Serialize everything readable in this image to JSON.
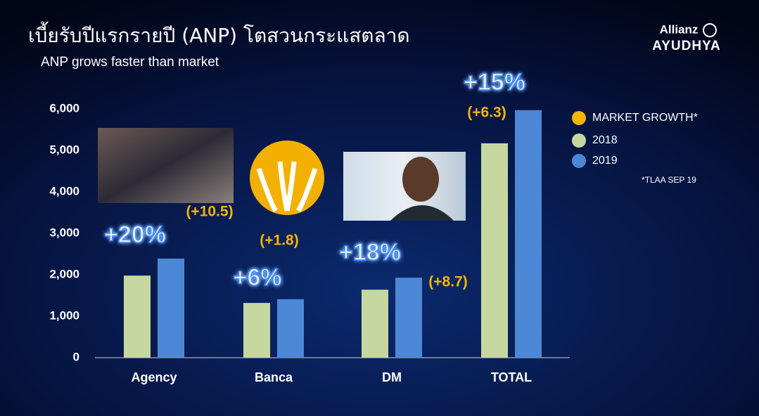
{
  "chart_data": {
    "type": "bar",
    "title": "เบี้ยรับปีแรกรายปี (ANP) โตสวนกระแสตลาด",
    "subtitle": "ANP grows faster than market",
    "categories": [
      "Agency",
      "Banca",
      "DM",
      "TOTAL"
    ],
    "series": [
      {
        "name": "2018",
        "color": "#c6d89f",
        "values": [
          1980,
          1320,
          1640,
          5170
        ]
      },
      {
        "name": "2019",
        "color": "#4c88d6",
        "values": [
          2390,
          1410,
          1930,
          5970
        ]
      }
    ],
    "ylim": [
      0,
      6000
    ],
    "yticks": [
      0,
      {
        "value": 1000,
        "label": "1,000"
      },
      {
        "value": 2000,
        "label": "2,000"
      },
      {
        "value": 3000,
        "label": "3,000"
      },
      {
        "value": 4000,
        "label": "4,000"
      },
      {
        "value": 5000,
        "label": "5,000"
      },
      {
        "value": 6000,
        "label": "6,000"
      }
    ],
    "growth_labels": [
      "+20%",
      "+6%",
      "+18%",
      "+15%"
    ],
    "market_growth_labels": [
      "(+10.5)",
      "(+1.8)",
      "(+8.7)",
      "(+6.3)"
    ],
    "market_growth_name": "MARKET GROWTH*",
    "market_growth_color": "#f7b500",
    "note": "*TLAA SEP 19",
    "legend": "right"
  },
  "logo": {
    "line1": "Allianz",
    "line2": "AYUDHYA"
  }
}
